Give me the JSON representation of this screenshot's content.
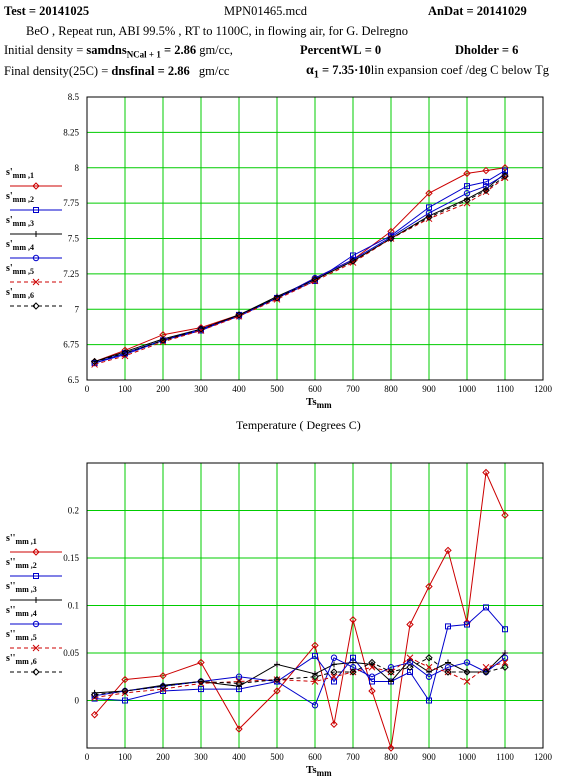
{
  "header": {
    "test_label": "Test",
    "test_value": "= 20141025",
    "file_name": "MPN01465.mcd",
    "andat_label": "AnDat",
    "andat_value": "= 20141029",
    "description": "BeO , Repeat run, ABI 99.5% , RT to 1100C, in flowing air, for G. Delregno",
    "initial_density_label": "Initial density =",
    "initial_density_expr": "samdns",
    "initial_density_sub": "NCal + 1",
    "initial_density_value": "= 2.86",
    "initial_density_unit": "gm/cc,",
    "percentwl_label": "PercentWL",
    "percentwl_value": "= 0",
    "dholder_label": "Dholder",
    "dholder_value": "= 6",
    "final_density_label": "Final density(25C) =",
    "final_density_expr": "dnsfinal",
    "final_density_value": "= 2.86",
    "final_density_unit": "gm/cc",
    "alpha_label": "α",
    "alpha_sub": "1",
    "alpha_value": "= 7.35·10",
    "alpha_desc": "lin expansion coef /deg C below Tg"
  },
  "chart_data": [
    {
      "type": "line",
      "title": "",
      "xlabel": "Ts",
      "xlabel_sub": "mm",
      "xlabel_caption": "Temperature ( Degrees C)",
      "ylabel": "",
      "xlim": [
        0,
        1200
      ],
      "ylim": [
        6.5,
        8.5
      ],
      "xticks": [
        0,
        100,
        200,
        300,
        400,
        500,
        600,
        700,
        800,
        900,
        1000,
        1100,
        1200
      ],
      "yticks": [
        6.5,
        6.75,
        7,
        7.25,
        7.5,
        7.75,
        8,
        8.25,
        8.5
      ],
      "ytick_labels": [
        "6.5",
        "6.75",
        "7",
        "7.25",
        "7.5",
        "7.75",
        "8",
        "8.25",
        "8.5"
      ],
      "grid": true,
      "series": [
        {
          "name": "s'mm,1",
          "label": "s'",
          "sub": "mm ,1",
          "color": "#cc0000",
          "marker": "diamond",
          "dash": "",
          "x": [
            20,
            100,
            200,
            300,
            400,
            500,
            600,
            700,
            800,
            900,
            1000,
            1050,
            1100
          ],
          "y": [
            6.63,
            6.71,
            6.82,
            6.87,
            6.96,
            7.08,
            7.22,
            7.35,
            7.55,
            7.82,
            7.96,
            7.98,
            8.0
          ]
        },
        {
          "name": "s'mm,2",
          "label": "s'",
          "sub": "mm ,2",
          "color": "#0000cc",
          "marker": "square",
          "dash": "",
          "x": [
            20,
            100,
            200,
            300,
            400,
            500,
            600,
            700,
            800,
            900,
            1000,
            1050,
            1100
          ],
          "y": [
            6.62,
            6.69,
            6.78,
            6.85,
            6.96,
            7.08,
            7.2,
            7.38,
            7.52,
            7.72,
            7.87,
            7.9,
            7.98
          ]
        },
        {
          "name": "s'mm,3",
          "label": "s'",
          "sub": "mm ,3",
          "color": "#000000",
          "marker": "plus",
          "dash": "",
          "x": [
            20,
            100,
            200,
            300,
            400,
            500,
            600,
            700,
            800,
            900,
            1000,
            1050,
            1100
          ],
          "y": [
            6.63,
            6.7,
            6.79,
            6.86,
            6.96,
            7.09,
            7.21,
            7.34,
            7.5,
            7.66,
            7.78,
            7.85,
            7.96
          ]
        },
        {
          "name": "s'mm,4",
          "label": "s'",
          "sub": "mm ,4",
          "color": "#0000cc",
          "marker": "circle",
          "dash": "",
          "x": [
            20,
            100,
            200,
            300,
            400,
            500,
            600,
            700,
            800,
            900,
            1000,
            1050,
            1100
          ],
          "y": [
            6.62,
            6.68,
            6.78,
            6.86,
            6.95,
            7.08,
            7.22,
            7.35,
            7.51,
            7.68,
            7.82,
            7.87,
            7.95
          ]
        },
        {
          "name": "s'mm,5",
          "label": "s'",
          "sub": "mm ,5",
          "color": "#cc0000",
          "marker": "x",
          "dash": "4,3",
          "x": [
            20,
            100,
            200,
            300,
            400,
            500,
            600,
            700,
            800,
            900,
            1000,
            1050,
            1100
          ],
          "y": [
            6.61,
            6.67,
            6.77,
            6.85,
            6.95,
            7.07,
            7.2,
            7.33,
            7.5,
            7.64,
            7.75,
            7.83,
            7.93
          ]
        },
        {
          "name": "s'mm,6",
          "label": "s'",
          "sub": "mm ,6",
          "color": "#000000",
          "marker": "diamond",
          "dash": "4,3",
          "x": [
            20,
            100,
            200,
            300,
            400,
            500,
            600,
            700,
            800,
            900,
            1000,
            1050,
            1100
          ],
          "y": [
            6.63,
            6.69,
            6.78,
            6.86,
            6.96,
            7.08,
            7.21,
            7.34,
            7.5,
            7.65,
            7.77,
            7.84,
            7.94
          ]
        }
      ]
    },
    {
      "type": "line",
      "title": "",
      "xlabel": "Ts",
      "xlabel_sub": "mm",
      "ylabel": "",
      "xlim": [
        0,
        1200
      ],
      "ylim": [
        -0.05,
        0.25
      ],
      "xticks": [
        0,
        100,
        200,
        300,
        400,
        500,
        600,
        700,
        800,
        900,
        1000,
        1100,
        1200
      ],
      "yticks": [
        0,
        0.05,
        0.1,
        0.15,
        0.2
      ],
      "ytick_labels": [
        "0",
        "0.05",
        "0.1",
        "0.15",
        "0.2"
      ],
      "grid": true,
      "series": [
        {
          "name": "s''mm,1",
          "label": "s''",
          "sub": "mm ,1",
          "color": "#cc0000",
          "marker": "diamond",
          "dash": "",
          "x": [
            20,
            100,
            200,
            300,
            400,
            500,
            600,
            650,
            700,
            750,
            800,
            850,
            900,
            950,
            1000,
            1050,
            1100
          ],
          "y": [
            -0.015,
            0.022,
            0.026,
            0.04,
            -0.03,
            0.01,
            0.058,
            -0.025,
            0.085,
            0.01,
            -0.05,
            0.08,
            0.12,
            0.158,
            0.082,
            0.24,
            0.195
          ]
        },
        {
          "name": "s''mm,2",
          "label": "s''",
          "sub": "mm ,2",
          "color": "#0000cc",
          "marker": "square",
          "dash": "",
          "x": [
            20,
            100,
            200,
            300,
            400,
            500,
            600,
            650,
            700,
            750,
            800,
            850,
            900,
            950,
            1000,
            1050,
            1100
          ],
          "y": [
            0.002,
            0.0,
            0.01,
            0.012,
            0.012,
            0.02,
            0.047,
            0.02,
            0.045,
            0.02,
            0.02,
            0.03,
            0.0,
            0.078,
            0.08,
            0.098,
            0.075
          ]
        },
        {
          "name": "s''mm,3",
          "label": "s''",
          "sub": "mm ,3",
          "color": "#000000",
          "marker": "plus",
          "dash": "",
          "x": [
            20,
            100,
            200,
            300,
            400,
            500,
            600,
            650,
            700,
            750,
            800,
            850,
            900,
            950,
            1000,
            1050,
            1100
          ],
          "y": [
            0.008,
            0.01,
            0.016,
            0.02,
            0.015,
            0.038,
            0.028,
            0.038,
            0.04,
            0.038,
            0.02,
            0.043,
            0.03,
            0.04,
            0.03,
            0.03,
            0.05
          ]
        },
        {
          "name": "s''mm,4",
          "label": "s''",
          "sub": "mm ,4",
          "color": "#0000cc",
          "marker": "circle",
          "dash": "",
          "x": [
            20,
            100,
            200,
            300,
            400,
            500,
            600,
            650,
            700,
            750,
            800,
            850,
            900,
            950,
            1000,
            1050,
            1100
          ],
          "y": [
            0.005,
            0.01,
            0.015,
            0.02,
            0.025,
            0.02,
            -0.005,
            0.045,
            0.035,
            0.025,
            0.035,
            0.04,
            0.025,
            0.035,
            0.04,
            0.03,
            0.045
          ]
        },
        {
          "name": "s''mm,5",
          "label": "s''",
          "sub": "mm ,5",
          "color": "#cc0000",
          "marker": "x",
          "dash": "4,3",
          "x": [
            20,
            100,
            200,
            300,
            400,
            500,
            600,
            650,
            700,
            750,
            800,
            850,
            900,
            950,
            1000,
            1050,
            1100
          ],
          "y": [
            0.003,
            0.008,
            0.012,
            0.018,
            0.02,
            0.022,
            0.02,
            0.025,
            0.03,
            0.035,
            0.03,
            0.045,
            0.035,
            0.03,
            0.02,
            0.035,
            0.04
          ]
        },
        {
          "name": "s''mm,6",
          "label": "s''",
          "sub": "mm ,6",
          "color": "#000000",
          "marker": "diamond",
          "dash": "4,3",
          "x": [
            20,
            100,
            200,
            300,
            400,
            500,
            600,
            650,
            700,
            750,
            800,
            850,
            900,
            950,
            1000,
            1050,
            1100
          ],
          "y": [
            0.006,
            0.01,
            0.015,
            0.02,
            0.018,
            0.022,
            0.025,
            0.03,
            0.03,
            0.04,
            0.03,
            0.035,
            0.045,
            0.03,
            0.03,
            0.03,
            0.035
          ]
        }
      ]
    }
  ]
}
